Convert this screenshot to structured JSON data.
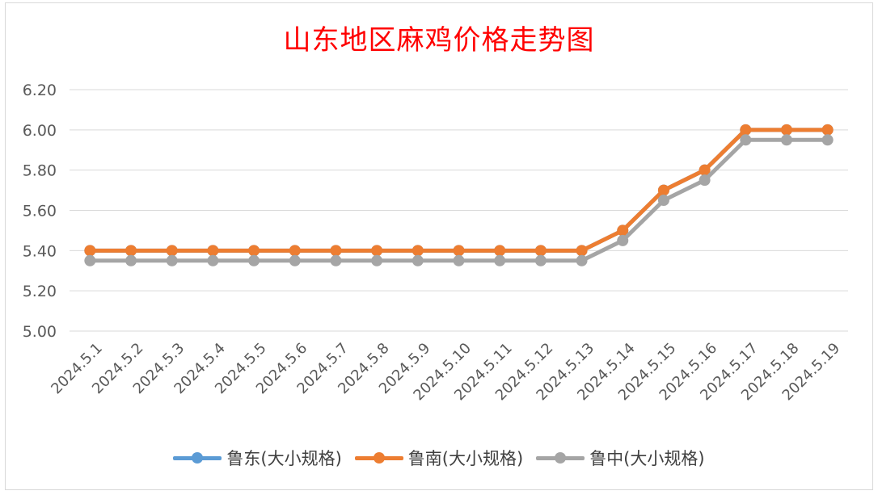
{
  "chart_data": {
    "type": "line",
    "title": "山东地区麻鸡价格走势图",
    "xlabel": "",
    "ylabel": "",
    "categories": [
      "2024.5.1",
      "2024.5.2",
      "2024.5.3",
      "2024.5.4",
      "2024.5.5",
      "2024.5.6",
      "2024.5.7",
      "2024.5.8",
      "2024.5.9",
      "2024.5.10",
      "2024.5.11",
      "2024.5.12",
      "2024.5.13",
      "2024.5.14",
      "2024.5.15",
      "2024.5.16",
      "2024.5.17",
      "2024.5.18",
      "2024.5.19"
    ],
    "ylim": [
      5.0,
      6.2
    ],
    "yticks": [
      "5.00",
      "5.20",
      "5.40",
      "5.60",
      "5.80",
      "6.00",
      "6.20"
    ],
    "grid": true,
    "legend_position": "bottom",
    "series": [
      {
        "name": "鲁东(大小规格)",
        "color": "#5b9bd5",
        "values": [
          5.4,
          5.4,
          5.4,
          5.4,
          5.4,
          5.4,
          5.4,
          5.4,
          5.4,
          5.4,
          5.4,
          5.4,
          5.4,
          5.5,
          5.7,
          5.8,
          6.0,
          6.0,
          6.0
        ]
      },
      {
        "name": "鲁南(大小规格)",
        "color": "#ed7d31",
        "values": [
          5.4,
          5.4,
          5.4,
          5.4,
          5.4,
          5.4,
          5.4,
          5.4,
          5.4,
          5.4,
          5.4,
          5.4,
          5.4,
          5.5,
          5.7,
          5.8,
          6.0,
          6.0,
          6.0
        ]
      },
      {
        "name": "鲁中(大小规格)",
        "color": "#a5a5a5",
        "values": [
          5.35,
          5.35,
          5.35,
          5.35,
          5.35,
          5.35,
          5.35,
          5.35,
          5.35,
          5.35,
          5.35,
          5.35,
          5.35,
          5.45,
          5.65,
          5.75,
          5.95,
          5.95,
          5.95
        ]
      }
    ]
  }
}
